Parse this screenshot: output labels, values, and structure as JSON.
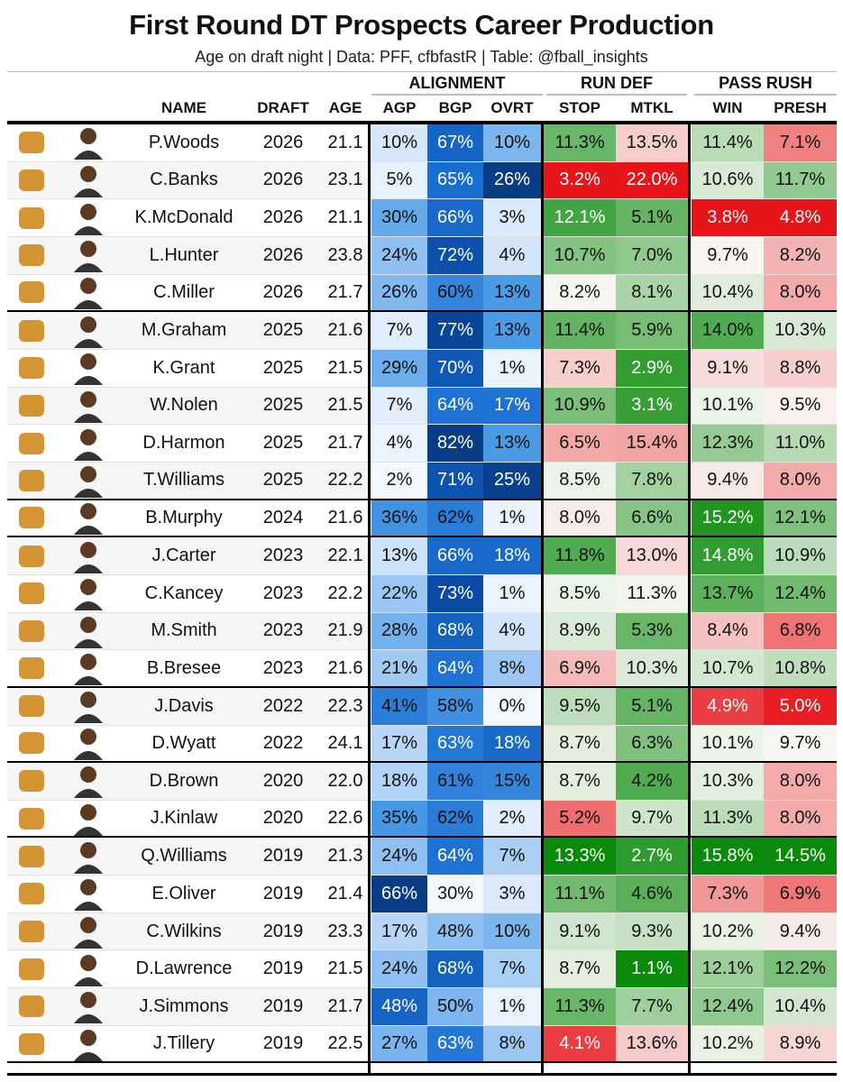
{
  "title": "First Round DT Prospects Career Production",
  "subtitle": "Age on draft night | Data: PFF, cfbfastR | Table: @fball_insights",
  "groups": {
    "alignment": "ALIGNMENT",
    "run_def": "RUN DEF",
    "pass_rush": "PASS RUSH"
  },
  "columns": {
    "name": "NAME",
    "draft": "DRAFT",
    "age": "AGE",
    "agp": "AGP",
    "bgp": "BGP",
    "ovrt": "OVRT",
    "stop": "STOP",
    "mtkl": "MTKL",
    "win": "WIN",
    "presh": "PRESH"
  },
  "colors": {
    "blue_scale_low": "#f4f9ff",
    "blue_scale_high": "#08306b",
    "good_green": "#0a8a0a",
    "bad_red": "#e8141a",
    "neutral": "#f7f7f7"
  },
  "chart_data": {
    "type": "table",
    "title": "First Round DT Prospects Career Production",
    "subtitle": "Age on draft night | Data: PFF, cfbfastR | Table: @fball_insights",
    "rows": [
      {
        "logo": "clemson-paw-logo",
        "name": "P.Woods",
        "draft": "2026",
        "age": "21.1",
        "agp": "10%",
        "bgp": "67%",
        "ovrt": "10%",
        "stop": "11.3%",
        "mtkl": "13.5%",
        "win": "11.4%",
        "presh": "7.1%"
      },
      {
        "logo": "florida-gator-logo",
        "name": "C.Banks",
        "draft": "2026",
        "age": "23.1",
        "agp": "5%",
        "bgp": "65%",
        "ovrt": "26%",
        "stop": "3.2%",
        "mtkl": "22.0%",
        "win": "10.6%",
        "presh": "11.7%"
      },
      {
        "logo": "ohio-state-logo",
        "name": "K.McDonald",
        "draft": "2026",
        "age": "21.1",
        "agp": "30%",
        "bgp": "66%",
        "ovrt": "3%",
        "stop": "12.1%",
        "mtkl": "5.1%",
        "win": "3.8%",
        "presh": "4.8%"
      },
      {
        "logo": "texas-tech-logo",
        "name": "L.Hunter",
        "draft": "2026",
        "age": "23.8",
        "agp": "24%",
        "bgp": "72%",
        "ovrt": "4%",
        "stop": "10.7%",
        "mtkl": "7.0%",
        "win": "9.7%",
        "presh": "8.2%"
      },
      {
        "logo": "georgia-g-logo",
        "name": "C.Miller",
        "draft": "2026",
        "age": "21.7",
        "agp": "26%",
        "bgp": "60%",
        "ovrt": "13%",
        "stop": "8.2%",
        "mtkl": "8.1%",
        "win": "10.4%",
        "presh": "8.0%",
        "end": true
      },
      {
        "logo": "michigan-m-logo",
        "name": "M.Graham",
        "draft": "2025",
        "age": "21.6",
        "agp": "7%",
        "bgp": "77%",
        "ovrt": "13%",
        "stop": "11.4%",
        "mtkl": "5.9%",
        "win": "14.0%",
        "presh": "10.3%"
      },
      {
        "logo": "michigan-m-logo",
        "name": "K.Grant",
        "draft": "2025",
        "age": "21.5",
        "agp": "29%",
        "bgp": "70%",
        "ovrt": "1%",
        "stop": "7.3%",
        "mtkl": "2.9%",
        "win": "9.1%",
        "presh": "8.8%"
      },
      {
        "logo": "ole-miss-logo",
        "name": "W.Nolen",
        "draft": "2025",
        "age": "21.5",
        "agp": "7%",
        "bgp": "64%",
        "ovrt": "17%",
        "stop": "10.9%",
        "mtkl": "3.1%",
        "win": "10.1%",
        "presh": "9.5%"
      },
      {
        "logo": "oregon-o-logo",
        "name": "D.Harmon",
        "draft": "2025",
        "age": "21.7",
        "agp": "4%",
        "bgp": "82%",
        "ovrt": "13%",
        "stop": "6.5%",
        "mtkl": "15.4%",
        "win": "12.3%",
        "presh": "11.0%"
      },
      {
        "logo": "ohio-state-logo",
        "name": "T.Williams",
        "draft": "2025",
        "age": "22.2",
        "agp": "2%",
        "bgp": "71%",
        "ovrt": "25%",
        "stop": "8.5%",
        "mtkl": "7.8%",
        "win": "9.4%",
        "presh": "8.0%",
        "end": true
      },
      {
        "logo": "texas-longhorn-logo",
        "name": "B.Murphy",
        "draft": "2024",
        "age": "21.6",
        "agp": "36%",
        "bgp": "62%",
        "ovrt": "1%",
        "stop": "8.0%",
        "mtkl": "6.6%",
        "win": "15.2%",
        "presh": "12.1%",
        "end": true
      },
      {
        "logo": "georgia-g-logo",
        "name": "J.Carter",
        "draft": "2023",
        "age": "22.1",
        "agp": "13%",
        "bgp": "66%",
        "ovrt": "18%",
        "stop": "11.8%",
        "mtkl": "13.0%",
        "win": "14.8%",
        "presh": "10.9%"
      },
      {
        "logo": "pitt-logo",
        "name": "C.Kancey",
        "draft": "2023",
        "age": "22.2",
        "agp": "22%",
        "bgp": "73%",
        "ovrt": "1%",
        "stop": "8.5%",
        "mtkl": "11.3%",
        "win": "13.7%",
        "presh": "12.4%"
      },
      {
        "logo": "michigan-m-logo",
        "name": "M.Smith",
        "draft": "2023",
        "age": "21.9",
        "agp": "28%",
        "bgp": "68%",
        "ovrt": "4%",
        "stop": "8.9%",
        "mtkl": "5.3%",
        "win": "8.4%",
        "presh": "6.8%"
      },
      {
        "logo": "clemson-paw-logo",
        "name": "B.Bresee",
        "draft": "2023",
        "age": "21.6",
        "agp": "21%",
        "bgp": "64%",
        "ovrt": "8%",
        "stop": "6.9%",
        "mtkl": "10.3%",
        "win": "10.7%",
        "presh": "10.8%",
        "end": true
      },
      {
        "logo": "georgia-g-logo",
        "name": "J.Davis",
        "draft": "2022",
        "age": "22.3",
        "agp": "41%",
        "bgp": "58%",
        "ovrt": "0%",
        "stop": "9.5%",
        "mtkl": "5.1%",
        "win": "4.9%",
        "presh": "5.0%"
      },
      {
        "logo": "georgia-g-logo",
        "name": "D.Wyatt",
        "draft": "2022",
        "age": "24.1",
        "agp": "17%",
        "bgp": "63%",
        "ovrt": "18%",
        "stop": "8.7%",
        "mtkl": "6.3%",
        "win": "10.1%",
        "presh": "9.7%",
        "end": true
      },
      {
        "logo": "auburn-au-logo",
        "name": "D.Brown",
        "draft": "2020",
        "age": "22.0",
        "agp": "18%",
        "bgp": "61%",
        "ovrt": "15%",
        "stop": "8.7%",
        "mtkl": "4.2%",
        "win": "10.3%",
        "presh": "8.0%"
      },
      {
        "logo": "south-carolina-c-logo",
        "name": "J.Kinlaw",
        "draft": "2020",
        "age": "22.6",
        "agp": "35%",
        "bgp": "62%",
        "ovrt": "2%",
        "stop": "5.2%",
        "mtkl": "9.7%",
        "win": "11.3%",
        "presh": "8.0%",
        "end": true
      },
      {
        "logo": "alabama-a-logo",
        "name": "Q.Williams",
        "draft": "2019",
        "age": "21.3",
        "agp": "24%",
        "bgp": "64%",
        "ovrt": "7%",
        "stop": "13.3%",
        "mtkl": "2.7%",
        "win": "15.8%",
        "presh": "14.5%"
      },
      {
        "logo": "houston-uh-logo",
        "name": "E.Oliver",
        "draft": "2019",
        "age": "21.4",
        "agp": "66%",
        "bgp": "30%",
        "ovrt": "3%",
        "stop": "11.1%",
        "mtkl": "4.6%",
        "win": "7.3%",
        "presh": "6.9%"
      },
      {
        "logo": "clemson-paw-logo",
        "name": "C.Wilkins",
        "draft": "2019",
        "age": "23.3",
        "agp": "17%",
        "bgp": "48%",
        "ovrt": "10%",
        "stop": "9.1%",
        "mtkl": "9.3%",
        "win": "10.2%",
        "presh": "9.4%"
      },
      {
        "logo": "clemson-paw-logo",
        "name": "D.Lawrence",
        "draft": "2019",
        "age": "21.5",
        "agp": "24%",
        "bgp": "68%",
        "ovrt": "7%",
        "stop": "8.7%",
        "mtkl": "1.1%",
        "win": "12.1%",
        "presh": "12.2%"
      },
      {
        "logo": "mississippi-state-logo",
        "name": "J.Simmons",
        "draft": "2019",
        "age": "21.7",
        "agp": "48%",
        "bgp": "50%",
        "ovrt": "1%",
        "stop": "11.3%",
        "mtkl": "7.7%",
        "win": "12.4%",
        "presh": "10.4%"
      },
      {
        "logo": "notre-dame-nd-logo",
        "name": "J.Tillery",
        "draft": "2019",
        "age": "22.5",
        "agp": "27%",
        "bgp": "63%",
        "ovrt": "8%",
        "stop": "4.1%",
        "mtkl": "13.6%",
        "win": "10.2%",
        "presh": "8.9%",
        "end": true
      }
    ]
  }
}
